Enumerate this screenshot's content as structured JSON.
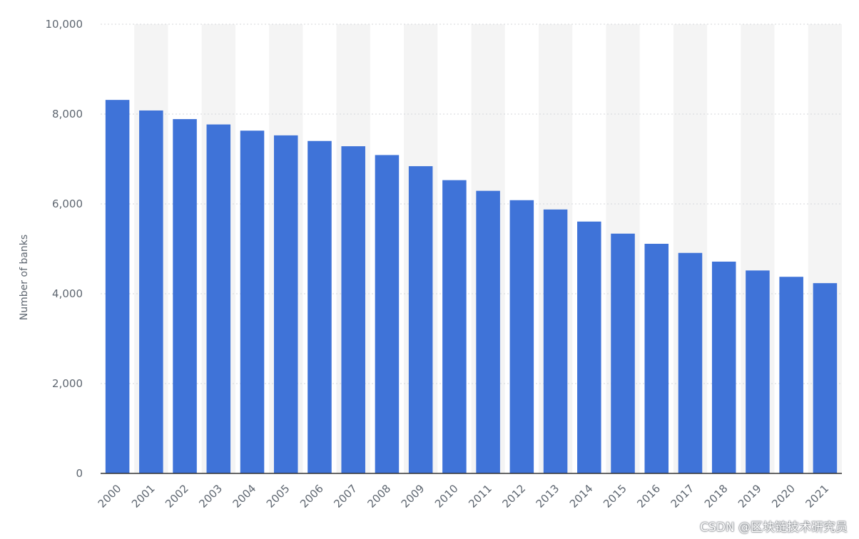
{
  "chart_data": {
    "type": "bar",
    "categories": [
      "2000",
      "2001",
      "2002",
      "2003",
      "2004",
      "2005",
      "2006",
      "2007",
      "2008",
      "2009",
      "2010",
      "2011",
      "2012",
      "2013",
      "2014",
      "2015",
      "2016",
      "2017",
      "2018",
      "2019",
      "2020",
      "2021"
    ],
    "values": [
      8315,
      8080,
      7888,
      7769,
      7631,
      7526,
      7401,
      7284,
      7088,
      6840,
      6529,
      6291,
      6083,
      5876,
      5607,
      5338,
      5112,
      4909,
      4715,
      4518,
      4377,
      4236
    ],
    "ylabel": "Number of banks",
    "xlabel": "",
    "ylim": [
      0,
      10000
    ],
    "yticks": [
      0,
      2000,
      4000,
      6000,
      8000,
      10000
    ],
    "ytick_labels": [
      "0",
      "2,000",
      "4,000",
      "6,000",
      "8,000",
      "10,000"
    ],
    "grid": true,
    "bar_color": "#3f73d8",
    "stripe_color": "#f4f4f4"
  },
  "watermark": "CSDN @区块链技术研究员"
}
